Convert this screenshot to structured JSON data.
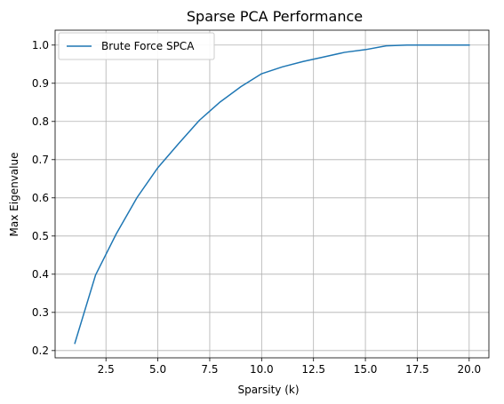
{
  "chart_data": {
    "type": "line",
    "title": "Sparse PCA Performance",
    "xlabel": "Sparsity (k)",
    "ylabel": "Max Eigenvalue",
    "xlim": [
      0.05,
      20.95
    ],
    "ylim": [
      0.181,
      1.039
    ],
    "xticks": [
      2.5,
      5.0,
      7.5,
      10.0,
      12.5,
      15.0,
      17.5,
      20.0
    ],
    "xtick_labels": [
      "2.5",
      "5.0",
      "7.5",
      "10.0",
      "12.5",
      "15.0",
      "17.5",
      "20.0"
    ],
    "yticks": [
      0.2,
      0.3,
      0.4,
      0.5,
      0.6,
      0.7,
      0.8,
      0.9,
      1.0
    ],
    "ytick_labels": [
      "0.2",
      "0.3",
      "0.4",
      "0.5",
      "0.6",
      "0.7",
      "0.8",
      "0.9",
      "1.0"
    ],
    "grid": true,
    "legend_position": "top-left",
    "series": [
      {
        "name": "Brute Force SPCA",
        "color": "#1f77b4",
        "x": [
          1,
          2,
          3,
          4,
          5,
          6,
          7,
          8,
          9,
          10,
          11,
          12,
          13,
          14,
          15,
          16,
          17,
          18,
          19,
          20
        ],
        "y": [
          0.219,
          0.398,
          0.506,
          0.601,
          0.679,
          0.742,
          0.803,
          0.851,
          0.891,
          0.925,
          0.943,
          0.957,
          0.969,
          0.981,
          0.988,
          0.998,
          1.0,
          1.0,
          1.0,
          1.0
        ]
      }
    ]
  }
}
